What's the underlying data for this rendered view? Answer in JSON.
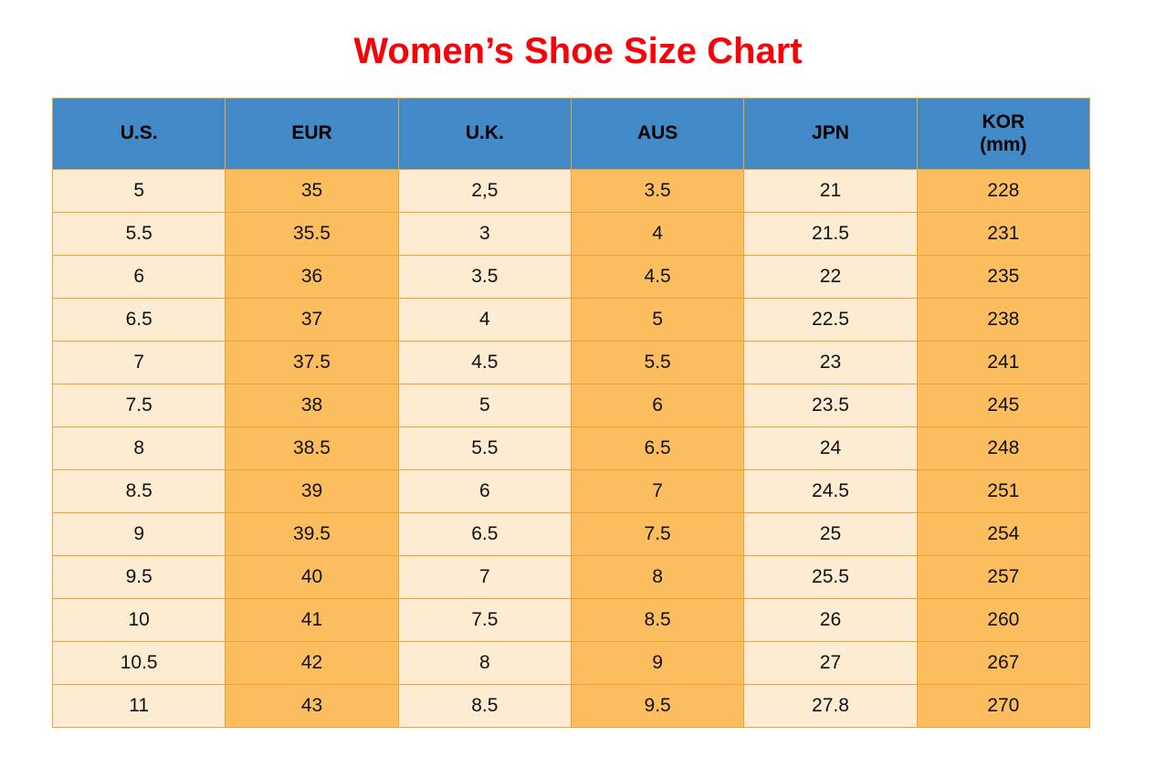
{
  "title": {
    "text": "Women’s Shoe Size Chart"
  },
  "colors": {
    "title_red": "#fb0006",
    "header_blue": "#4189c7",
    "column_light_cream": "#fdebd2",
    "column_orange": "#fcbd5e",
    "grid_orange": "#efa135",
    "cell_text": "#111111",
    "page_background": "#ffffff"
  },
  "table": {
    "columns": [
      {
        "key": "us",
        "label": "U.S.",
        "sub": "",
        "band": "light"
      },
      {
        "key": "eur",
        "label": "EUR",
        "sub": "",
        "band": "orange"
      },
      {
        "key": "uk",
        "label": "U.K.",
        "sub": "",
        "band": "light"
      },
      {
        "key": "aus",
        "label": "AUS",
        "sub": "",
        "band": "orange"
      },
      {
        "key": "jpn",
        "label": "JPN",
        "sub": "",
        "band": "light"
      },
      {
        "key": "kor",
        "label": "KOR",
        "sub": "(mm)",
        "band": "orange"
      }
    ],
    "rows": [
      [
        "5",
        "35",
        "2,5",
        "3.5",
        "21",
        "228"
      ],
      [
        "5.5",
        "35.5",
        "3",
        "4",
        "21.5",
        "231"
      ],
      [
        "6",
        "36",
        "3.5",
        "4.5",
        "22",
        "235"
      ],
      [
        "6.5",
        "37",
        "4",
        "5",
        "22.5",
        "238"
      ],
      [
        "7",
        "37.5",
        "4.5",
        "5.5",
        "23",
        "241"
      ],
      [
        "7.5",
        "38",
        "5",
        "6",
        "23.5",
        "245"
      ],
      [
        "8",
        "38.5",
        "5.5",
        "6.5",
        "24",
        "248"
      ],
      [
        "8.5",
        "39",
        "6",
        "7",
        "24.5",
        "251"
      ],
      [
        "9",
        "39.5",
        "6.5",
        "7.5",
        "25",
        "254"
      ],
      [
        "9.5",
        "40",
        "7",
        "8",
        "25.5",
        "257"
      ],
      [
        "10",
        "41",
        "7.5",
        "8.5",
        "26",
        "260"
      ],
      [
        "10.5",
        "42",
        "8",
        "9",
        "27",
        "267"
      ],
      [
        "11",
        "43",
        "8.5",
        "9.5",
        "27.8",
        "270"
      ]
    ]
  },
  "chart_data": {
    "type": "table",
    "title": "Women’s Shoe Size Chart",
    "columns": [
      "U.S.",
      "EUR",
      "U.K.",
      "AUS",
      "JPN",
      "KOR (mm)"
    ],
    "rows": [
      [
        "5",
        "35",
        "2,5",
        "3.5",
        "21",
        "228"
      ],
      [
        "5.5",
        "35.5",
        "3",
        "4",
        "21.5",
        "231"
      ],
      [
        "6",
        "36",
        "3.5",
        "4.5",
        "22",
        "235"
      ],
      [
        "6.5",
        "37",
        "4",
        "5",
        "22.5",
        "238"
      ],
      [
        "7",
        "37.5",
        "4.5",
        "5.5",
        "23",
        "241"
      ],
      [
        "7.5",
        "38",
        "5",
        "6",
        "23.5",
        "245"
      ],
      [
        "8",
        "38.5",
        "5.5",
        "6.5",
        "24",
        "248"
      ],
      [
        "8.5",
        "39",
        "6",
        "7",
        "24.5",
        "251"
      ],
      [
        "9",
        "39.5",
        "6.5",
        "7.5",
        "25",
        "254"
      ],
      [
        "9.5",
        "40",
        "7",
        "8",
        "25.5",
        "257"
      ],
      [
        "10",
        "41",
        "7.5",
        "8.5",
        "26",
        "260"
      ],
      [
        "10.5",
        "42",
        "8",
        "9",
        "27",
        "267"
      ],
      [
        "11",
        "43",
        "8.5",
        "9.5",
        "27.8",
        "270"
      ]
    ],
    "layout": {
      "header_background": "#4189c7",
      "column_band_pattern": [
        "light",
        "orange",
        "light",
        "orange",
        "light",
        "orange"
      ],
      "grid": true
    }
  }
}
